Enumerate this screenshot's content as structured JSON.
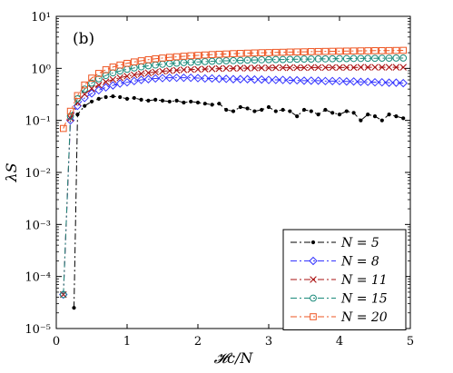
{
  "chart_data": {
    "type": "line",
    "panel_label": "(b)",
    "xlabel": "𝓗c/N",
    "ylabel": "λS",
    "xlim": [
      0,
      5
    ],
    "ylim": [
      1e-05,
      10
    ],
    "yscale": "log",
    "x_ticks": [
      "0",
      "1",
      "2",
      "3",
      "4",
      "5"
    ],
    "y_ticks": [
      "10⁻⁵",
      "10⁻⁴",
      "10⁻³",
      "10⁻²",
      "10⁻¹",
      "10⁰",
      "10¹"
    ],
    "legend_position": "lower-right",
    "series": [
      {
        "name": "N = 5",
        "color": "#000000",
        "marker": "dot",
        "x": [
          0.25,
          0.3,
          0.4,
          0.5,
          0.6,
          0.7,
          0.8,
          0.9,
          1.0,
          1.1,
          1.2,
          1.3,
          1.4,
          1.5,
          1.6,
          1.7,
          1.8,
          1.9,
          2.0,
          2.1,
          2.2,
          2.3,
          2.4,
          2.5,
          2.6,
          2.7,
          2.8,
          2.9,
          3.0,
          3.1,
          3.2,
          3.3,
          3.4,
          3.5,
          3.6,
          3.7,
          3.8,
          3.9,
          4.0,
          4.1,
          4.2,
          4.3,
          4.4,
          4.5,
          4.6,
          4.7,
          4.8,
          4.9
        ],
        "y": [
          2.5e-05,
          0.13,
          0.19,
          0.23,
          0.26,
          0.28,
          0.29,
          0.28,
          0.26,
          0.27,
          0.25,
          0.24,
          0.25,
          0.24,
          0.23,
          0.24,
          0.22,
          0.23,
          0.22,
          0.21,
          0.2,
          0.21,
          0.16,
          0.15,
          0.18,
          0.17,
          0.15,
          0.16,
          0.18,
          0.15,
          0.16,
          0.15,
          0.12,
          0.16,
          0.15,
          0.13,
          0.16,
          0.14,
          0.13,
          0.15,
          0.14,
          0.1,
          0.13,
          0.12,
          0.1,
          0.13,
          0.12,
          0.11
        ]
      },
      {
        "name": "N = 8",
        "color": "#3333ff",
        "marker": "diamond",
        "x": [
          0.1,
          0.2,
          0.3,
          0.4,
          0.5,
          0.6,
          0.7,
          0.8,
          0.9,
          1.0,
          1.1,
          1.2,
          1.3,
          1.4,
          1.5,
          1.6,
          1.7,
          1.8,
          1.9,
          2.0,
          2.1,
          2.2,
          2.3,
          2.4,
          2.5,
          2.6,
          2.7,
          2.8,
          2.9,
          3.0,
          3.1,
          3.2,
          3.3,
          3.4,
          3.5,
          3.6,
          3.7,
          3.8,
          3.9,
          4.0,
          4.1,
          4.2,
          4.3,
          4.4,
          4.5,
          4.6,
          4.7,
          4.8,
          4.9
        ],
        "y": [
          4.5e-05,
          0.1,
          0.19,
          0.27,
          0.33,
          0.38,
          0.43,
          0.47,
          0.51,
          0.54,
          0.57,
          0.6,
          0.62,
          0.64,
          0.65,
          0.66,
          0.66,
          0.66,
          0.66,
          0.65,
          0.64,
          0.64,
          0.63,
          0.63,
          0.62,
          0.62,
          0.62,
          0.61,
          0.61,
          0.6,
          0.6,
          0.6,
          0.59,
          0.59,
          0.58,
          0.58,
          0.58,
          0.57,
          0.57,
          0.57,
          0.56,
          0.56,
          0.55,
          0.55,
          0.54,
          0.54,
          0.53,
          0.53,
          0.52
        ]
      },
      {
        "name": "N = 11",
        "color": "#aa1111",
        "marker": "x",
        "x": [
          0.1,
          0.2,
          0.3,
          0.4,
          0.5,
          0.6,
          0.7,
          0.8,
          0.9,
          1.0,
          1.1,
          1.2,
          1.3,
          1.4,
          1.5,
          1.6,
          1.7,
          1.8,
          1.9,
          2.0,
          2.1,
          2.2,
          2.3,
          2.4,
          2.5,
          2.6,
          2.7,
          2.8,
          2.9,
          3.0,
          3.1,
          3.2,
          3.3,
          3.4,
          3.5,
          3.6,
          3.7,
          3.8,
          3.9,
          4.0,
          4.1,
          4.2,
          4.3,
          4.4,
          4.5,
          4.6,
          4.7,
          4.8,
          4.9
        ],
        "y": [
          4.5e-05,
          0.11,
          0.22,
          0.32,
          0.41,
          0.48,
          0.55,
          0.61,
          0.66,
          0.71,
          0.75,
          0.79,
          0.82,
          0.85,
          0.88,
          0.9,
          0.92,
          0.94,
          0.95,
          0.96,
          0.97,
          0.98,
          0.99,
          1.0,
          1.0,
          1.01,
          1.01,
          1.02,
          1.02,
          1.02,
          1.03,
          1.03,
          1.03,
          1.03,
          1.03,
          1.04,
          1.04,
          1.04,
          1.04,
          1.04,
          1.04,
          1.04,
          1.05,
          1.05,
          1.05,
          1.05,
          1.05,
          1.05,
          1.05
        ]
      },
      {
        "name": "N = 15",
        "color": "#1a8a7a",
        "marker": "circle",
        "x": [
          0.1,
          0.2,
          0.3,
          0.4,
          0.5,
          0.6,
          0.7,
          0.8,
          0.9,
          1.0,
          1.1,
          1.2,
          1.3,
          1.4,
          1.5,
          1.6,
          1.7,
          1.8,
          1.9,
          2.0,
          2.1,
          2.2,
          2.3,
          2.4,
          2.5,
          2.6,
          2.7,
          2.8,
          2.9,
          3.0,
          3.1,
          3.2,
          3.3,
          3.4,
          3.5,
          3.6,
          3.7,
          3.8,
          3.9,
          4.0,
          4.1,
          4.2,
          4.3,
          4.4,
          4.5,
          4.6,
          4.7,
          4.8,
          4.9
        ],
        "y": [
          4.5e-05,
          0.12,
          0.26,
          0.4,
          0.52,
          0.63,
          0.73,
          0.82,
          0.89,
          0.96,
          1.02,
          1.07,
          1.12,
          1.16,
          1.2,
          1.23,
          1.26,
          1.29,
          1.31,
          1.33,
          1.35,
          1.37,
          1.39,
          1.4,
          1.41,
          1.42,
          1.44,
          1.45,
          1.46,
          1.47,
          1.48,
          1.48,
          1.49,
          1.5,
          1.51,
          1.51,
          1.52,
          1.52,
          1.53,
          1.54,
          1.54,
          1.55,
          1.55,
          1.56,
          1.56,
          1.57,
          1.57,
          1.58,
          1.58
        ]
      },
      {
        "name": "N = 20",
        "color": "#ee5522",
        "marker": "square",
        "x": [
          0.1,
          0.2,
          0.3,
          0.4,
          0.5,
          0.6,
          0.7,
          0.8,
          0.9,
          1.0,
          1.1,
          1.2,
          1.3,
          1.4,
          1.5,
          1.6,
          1.7,
          1.8,
          1.9,
          2.0,
          2.1,
          2.2,
          2.3,
          2.4,
          2.5,
          2.6,
          2.7,
          2.8,
          2.9,
          3.0,
          3.1,
          3.2,
          3.3,
          3.4,
          3.5,
          3.6,
          3.7,
          3.8,
          3.9,
          4.0,
          4.1,
          4.2,
          4.3,
          4.4,
          4.5,
          4.6,
          4.7,
          4.8,
          4.9
        ],
        "y": [
          0.07,
          0.15,
          0.3,
          0.48,
          0.65,
          0.8,
          0.94,
          1.06,
          1.16,
          1.25,
          1.33,
          1.4,
          1.47,
          1.53,
          1.58,
          1.63,
          1.67,
          1.71,
          1.75,
          1.78,
          1.81,
          1.84,
          1.87,
          1.89,
          1.92,
          1.94,
          1.96,
          1.98,
          2.0,
          2.01,
          2.03,
          2.04,
          2.06,
          2.07,
          2.08,
          2.1,
          2.11,
          2.12,
          2.13,
          2.14,
          2.15,
          2.16,
          2.17,
          2.18,
          2.19,
          2.19,
          2.2,
          2.21,
          2.22
        ]
      }
    ]
  }
}
